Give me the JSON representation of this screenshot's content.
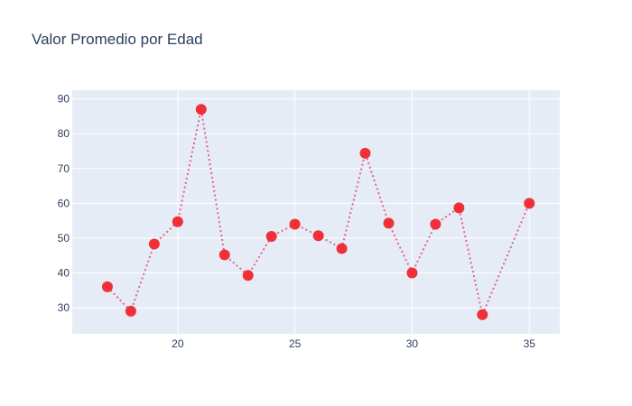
{
  "chart_data": {
    "type": "line",
    "title": "Valor Promedio por Edad",
    "xlabel": "",
    "ylabel": "",
    "xlim": [
      15.5,
      36.3
    ],
    "ylim": [
      22.5,
      92.5
    ],
    "x_ticks": [
      20,
      25,
      30,
      35
    ],
    "y_ticks": [
      30,
      40,
      50,
      60,
      70,
      80,
      90
    ],
    "grid": true,
    "line_style": "dotted",
    "line_color": "#e0658c",
    "marker_color": "#f0262e",
    "plot_bg": "#e5ecf6",
    "series": [
      {
        "x": [
          17,
          18,
          19,
          20,
          21,
          22,
          23,
          24,
          25,
          26,
          27,
          28,
          29,
          30,
          31,
          32,
          33,
          35
        ],
        "y": [
          36,
          29,
          48.3,
          54.7,
          87,
          45.2,
          39.3,
          50.5,
          54,
          50.7,
          47,
          74.4,
          54.3,
          40,
          54,
          58.7,
          28,
          60
        ]
      }
    ]
  }
}
